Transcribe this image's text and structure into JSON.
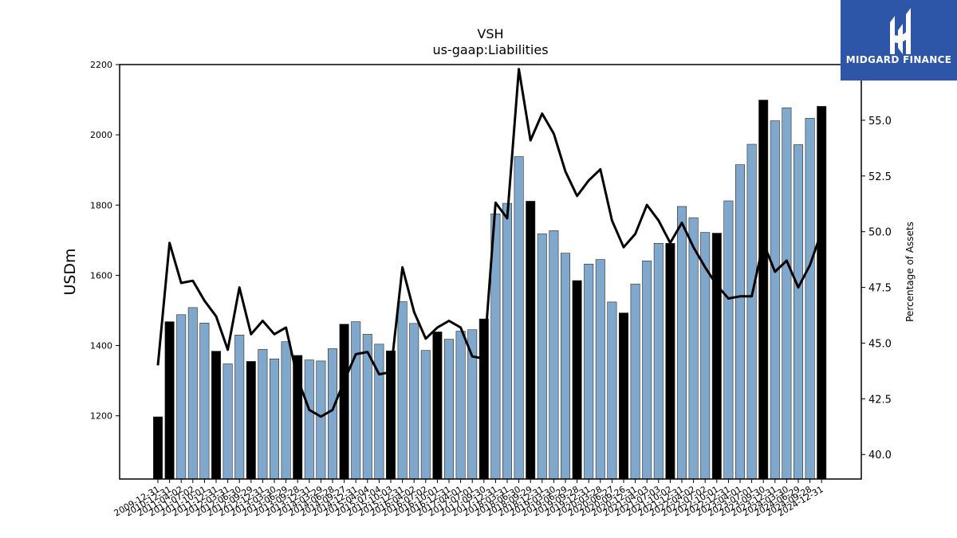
{
  "chart_data": {
    "type": "bar",
    "title": "VSH",
    "subtitle": "us-gaap:Liabilities",
    "ylabel": "USDm",
    "y2label": "Percentage of Assets",
    "ylim": [
      1020,
      2200
    ],
    "y2lim": [
      38.9,
      57.5
    ],
    "yticks": [
      1200,
      1400,
      1600,
      1800,
      2000,
      2200
    ],
    "y2ticks": [
      "40.0",
      "42.5",
      "45.0",
      "47.5",
      "50.0",
      "52.5",
      "55.0"
    ],
    "y2tick_values": [
      40.0,
      42.5,
      45.0,
      47.5,
      50.0,
      52.5,
      55.0
    ],
    "xtick_labels": [
      "2009-12-31",
      "2010-12-31",
      "2011-04-02",
      "2011-07-02",
      "2011-10-01",
      "2011-12-31",
      "2012-03-31",
      "2012-06-30",
      "2012-09-29",
      "2012-12-31",
      "2013-03-30",
      "2013-06-29",
      "2013-09-28",
      "2013-12-31",
      "2014-03-29",
      "2014-06-28",
      "2014-09-27",
      "2014-12-31",
      "2015-04-04",
      "2015-07-04",
      "2015-10-03",
      "2015-12-31",
      "2016-04-02",
      "2016-07-02",
      "2016-10-01",
      "2016-12-31",
      "2017-04-01",
      "2017-07-01",
      "2017-09-30",
      "2017-12-31",
      "2018-03-31",
      "2018-06-30",
      "2018-09-29",
      "2018-12-31",
      "2019-03-30",
      "2019-06-29",
      "2019-09-28",
      "2019-12-31",
      "2020-03-28",
      "2020-06-27",
      "2020-09-26",
      "2020-12-31",
      "2021-04-03",
      "2021-07-03",
      "2021-10-02",
      "2021-12-31",
      "2022-04-02",
      "2022-07-02",
      "2022-10-01",
      "2022-12-31",
      "2023-04-01",
      "2023-07-01",
      "2023-09-30",
      "2023-12-31",
      "2024-03-30",
      "2024-06-29",
      "2024-09-28",
      "2024-12-31"
    ],
    "highlight": [
      true,
      true,
      false,
      false,
      false,
      true,
      false,
      false,
      true,
      false,
      false,
      false,
      true,
      false,
      false,
      false,
      true,
      false,
      false,
      false,
      true,
      false,
      false,
      false,
      true,
      false,
      false,
      false,
      true,
      false,
      false,
      false,
      true,
      false,
      false,
      false,
      true,
      false,
      false,
      false,
      true,
      false,
      false,
      false,
      true,
      false,
      false,
      false,
      true,
      false,
      false,
      false,
      true,
      false,
      false,
      false,
      false,
      true
    ],
    "series": [
      {
        "name": "",
        "type": "bar",
        "colors": {
          "quarter": "#7fa8cc",
          "year_end": "#000000"
        },
        "values": [
          1197,
          1468,
          1488,
          1508,
          1464,
          1384,
          1348,
          1430,
          1355,
          1389,
          1362,
          1411,
          1372,
          1359,
          1356,
          1391,
          1461,
          1468,
          1432,
          1404,
          1385,
          1525,
          1463,
          1386,
          1439,
          1418,
          1441,
          1445,
          1476,
          1775,
          1805,
          1938,
          1811,
          1718,
          1727,
          1663,
          1585,
          1632,
          1645,
          1524,
          1493,
          1575,
          1641,
          1691,
          1691,
          1796,
          1764,
          1722,
          1720,
          1812,
          1915,
          1973,
          2099,
          2040,
          2077,
          1972,
          2047,
          2081
        ]
      },
      {
        "name": "",
        "type": "line",
        "axis": "right",
        "color": "#000000",
        "values": [
          44.0,
          49.5,
          47.7,
          47.8,
          46.9,
          46.2,
          44.7,
          47.5,
          45.4,
          46.0,
          45.4,
          45.7,
          43.4,
          42.0,
          41.7,
          42.0,
          43.3,
          44.5,
          44.6,
          43.6,
          43.7,
          48.4,
          46.4,
          45.2,
          45.7,
          46.0,
          45.7,
          44.4,
          44.3,
          51.3,
          50.6,
          57.3,
          54.1,
          55.3,
          54.4,
          52.7,
          51.6,
          52.3,
          52.8,
          50.5,
          49.3,
          49.9,
          51.2,
          50.5,
          49.5,
          50.4,
          49.3,
          48.4,
          47.6,
          47.0,
          47.1,
          47.1,
          49.5,
          48.2,
          48.7,
          47.5,
          48.5,
          50.0
        ]
      }
    ],
    "grid": false,
    "legend": "none"
  },
  "logo": {
    "text": "MIDGARD FINANCE"
  }
}
